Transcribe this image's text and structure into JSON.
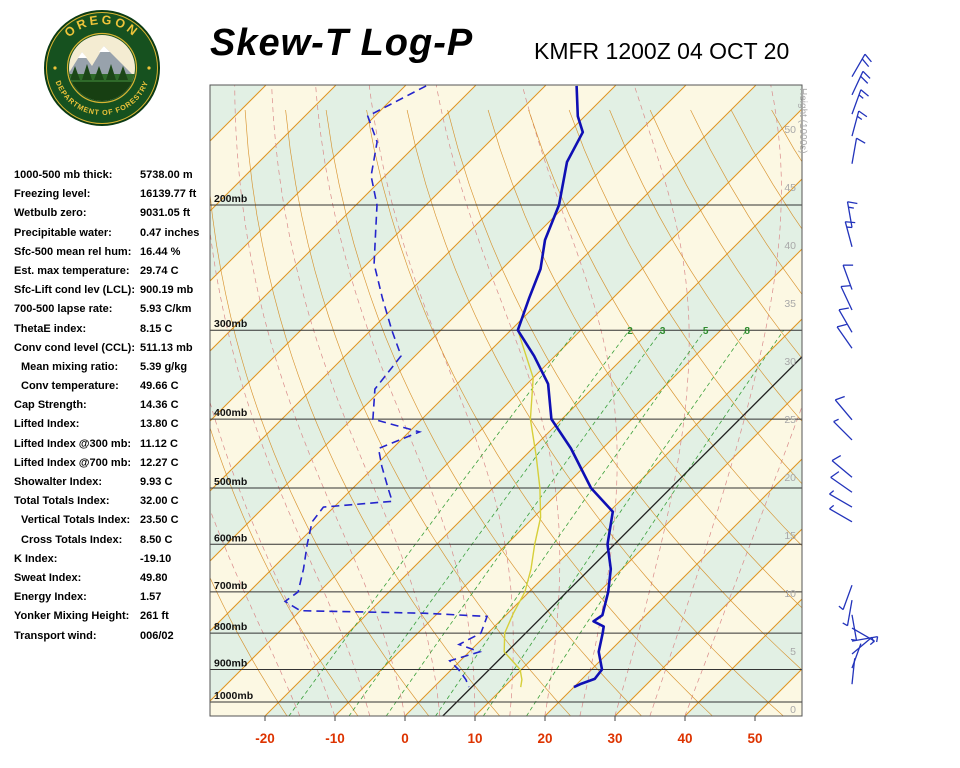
{
  "header": {
    "title": "Skew-T Log-P",
    "station": "KMFR 1200Z 04 OCT 20"
  },
  "logo": {
    "top_text": "OREGON",
    "bottom_text": "DEPARTMENT OF FORESTRY"
  },
  "indices": [
    {
      "label": "1000-500 mb thick:",
      "value": "5738.00 m",
      "indent": false
    },
    {
      "label": "Freezing level:",
      "value": "16139.77 ft",
      "indent": false
    },
    {
      "label": "Wetbulb zero:",
      "value": "9031.05 ft",
      "indent": false
    },
    {
      "label": "Precipitable water:",
      "value": "0.47 inches",
      "indent": false
    },
    {
      "label": "Sfc-500 mean rel hum:",
      "value": "16.44 %",
      "indent": false
    },
    {
      "label": "Est. max temperature:",
      "value": "29.74 C",
      "indent": false
    },
    {
      "label": "Sfc-Lift cond lev (LCL):",
      "value": "900.19 mb",
      "indent": false
    },
    {
      "label": "700-500 lapse rate:",
      "value": "5.93 C/km",
      "indent": false
    },
    {
      "label": "ThetaE index:",
      "value": "8.15 C",
      "indent": false
    },
    {
      "label": "Conv cond level (CCL):",
      "value": "511.13 mb",
      "indent": false
    },
    {
      "label": "Mean mixing ratio:",
      "value": "5.39 g/kg",
      "indent": true
    },
    {
      "label": "Conv temperature:",
      "value": "49.66 C",
      "indent": true
    },
    {
      "label": "Cap Strength:",
      "value": "14.36 C",
      "indent": false
    },
    {
      "label": "Lifted Index:",
      "value": "13.80 C",
      "indent": false
    },
    {
      "label": "Lifted Index @300 mb:",
      "value": "11.12 C",
      "indent": false
    },
    {
      "label": "Lifted Index @700 mb:",
      "value": "12.27 C",
      "indent": false
    },
    {
      "label": "Showalter Index:",
      "value": "9.93 C",
      "indent": false
    },
    {
      "label": "Total Totals Index:",
      "value": "32.00 C",
      "indent": false
    },
    {
      "label": "Vertical Totals Index:",
      "value": "23.50 C",
      "indent": true
    },
    {
      "label": "Cross Totals Index:",
      "value": "8.50 C",
      "indent": true
    },
    {
      "label": "K Index:",
      "value": "-19.10",
      "indent": false
    },
    {
      "label": "Sweat Index:",
      "value": "49.80",
      "indent": false
    },
    {
      "label": "Energy Index:",
      "value": "1.57",
      "indent": false
    },
    {
      "label": "Yonker Mixing Height:",
      "value": "261 ft",
      "indent": false
    },
    {
      "label": "Transport wind:",
      "value": "006/02",
      "indent": false
    }
  ],
  "chart_data": {
    "type": "skewt-log-p",
    "pressure_axis": {
      "levels": [
        200,
        300,
        400,
        500,
        600,
        700,
        800,
        900,
        1000
      ],
      "labels": [
        "200mb",
        "300mb",
        "400mb",
        "500mb",
        "600mb",
        "700mb",
        "800mb",
        "900mb",
        "1000mb"
      ],
      "top_mb": 136,
      "bottom_mb": 1047
    },
    "temp_axis": {
      "ticks": [
        -20,
        -10,
        0,
        10,
        20,
        30,
        40,
        50
      ],
      "unit": "C"
    },
    "height_axis": {
      "title": "Height (1000s)",
      "labels": [
        50,
        45,
        40,
        35,
        30,
        25,
        20,
        15,
        10,
        5,
        0
      ],
      "unit": "1000s ft"
    },
    "grid": {
      "isotherm_step_c": 10,
      "dry_adiabats_theta_k": {
        "start": 253,
        "end": 453,
        "step": 10
      },
      "moist_adiabats_start_c": {
        "start": -15,
        "end": 40,
        "step": 5
      },
      "mixing_ratio_lines_gkg": [
        1,
        2,
        3,
        5,
        8,
        12
      ],
      "mixing_ratio_labels": [
        "2",
        "3",
        "5",
        "8"
      ],
      "reference_line_intercept_c": 5.4,
      "skew_deg": 45
    },
    "series": {
      "temperature": {
        "name": "Temperature",
        "units": [
          "mb",
          "C"
        ],
        "points": [
          [
            136,
            -65.5
          ],
          [
            150,
            -61
          ],
          [
            158,
            -58
          ],
          [
            174,
            -56
          ],
          [
            200,
            -51
          ],
          [
            224,
            -48
          ],
          [
            246,
            -44.5
          ],
          [
            270,
            -42
          ],
          [
            300,
            -39
          ],
          [
            326,
            -33
          ],
          [
            357,
            -27
          ],
          [
            400,
            -21.5
          ],
          [
            440,
            -14.5
          ],
          [
            500,
            -6.0
          ],
          [
            540,
            0.5
          ],
          [
            600,
            4.4
          ],
          [
            650,
            8.4
          ],
          [
            700,
            11.3
          ],
          [
            755,
            13.8
          ],
          [
            770,
            13.4
          ],
          [
            783,
            15.6
          ],
          [
            800,
            16.4
          ],
          [
            850,
            18.5
          ],
          [
            900,
            21.5
          ],
          [
            928,
            21.8
          ],
          [
            942,
            20.6
          ],
          [
            953,
            20.0
          ]
        ]
      },
      "dewpoint": {
        "name": "Dewpoint",
        "units": [
          "mb",
          "C"
        ],
        "points": [
          [
            136,
            -87
          ],
          [
            150,
            -91
          ],
          [
            163,
            -86
          ],
          [
            182,
            -82
          ],
          [
            200,
            -77
          ],
          [
            220,
            -73
          ],
          [
            242,
            -69
          ],
          [
            270,
            -63
          ],
          [
            300,
            -57
          ],
          [
            326,
            -52
          ],
          [
            363,
            -51
          ],
          [
            400,
            -47
          ],
          [
            417,
            -38.5
          ],
          [
            440,
            -42
          ],
          [
            466,
            -39
          ],
          [
            500,
            -35
          ],
          [
            522,
            -32.5
          ],
          [
            532,
            -41.5
          ],
          [
            558,
            -41
          ],
          [
            600,
            -38.5
          ],
          [
            650,
            -35.5
          ],
          [
            700,
            -33
          ],
          [
            722,
            -33.5
          ],
          [
            744,
            -30
          ],
          [
            750,
            -12
          ],
          [
            758,
            -2.5
          ],
          [
            800,
            -1
          ],
          [
            830,
            -2.5
          ],
          [
            850,
            1.5
          ],
          [
            875,
            -1.5
          ],
          [
            900,
            1.0
          ],
          [
            930,
            3.5
          ],
          [
            953,
            5.0
          ]
        ]
      },
      "wetbulb": {
        "name": "Wetbulb",
        "units": [
          "mb",
          "C"
        ],
        "points": [
          [
            300,
            -39
          ],
          [
            350,
            -30
          ],
          [
            400,
            -24.5
          ],
          [
            450,
            -18.5
          ],
          [
            500,
            -13.3
          ],
          [
            550,
            -9
          ],
          [
            600,
            -6.0
          ],
          [
            650,
            -3
          ],
          [
            700,
            -0.6
          ],
          [
            750,
            0.8
          ],
          [
            800,
            2.4
          ],
          [
            850,
            5
          ],
          [
            900,
            9.8
          ],
          [
            930,
            11.5
          ],
          [
            953,
            12.4
          ]
        ]
      }
    },
    "winds": [
      {
        "p": 132,
        "dir": 30,
        "kt": 20
      },
      {
        "p": 140,
        "dir": 25,
        "kt": 20
      },
      {
        "p": 149,
        "dir": 20,
        "kt": 15
      },
      {
        "p": 160,
        "dir": 15,
        "kt": 15
      },
      {
        "p": 175,
        "dir": 10,
        "kt": 10
      },
      {
        "p": 215,
        "dir": 350,
        "kt": 15
      },
      {
        "p": 229,
        "dir": 345,
        "kt": 15
      },
      {
        "p": 263,
        "dir": 340,
        "kt": 10
      },
      {
        "p": 281,
        "dir": 335,
        "kt": 10
      },
      {
        "p": 302,
        "dir": 330,
        "kt": 10
      },
      {
        "p": 318,
        "dir": 325,
        "kt": 10
      },
      {
        "p": 401,
        "dir": 320,
        "kt": 10
      },
      {
        "p": 428,
        "dir": 315,
        "kt": 5
      },
      {
        "p": 483,
        "dir": 310,
        "kt": 10
      },
      {
        "p": 507,
        "dir": 305,
        "kt": 10
      },
      {
        "p": 532,
        "dir": 300,
        "kt": 5
      },
      {
        "p": 558,
        "dir": 300,
        "kt": 5
      },
      {
        "p": 685,
        "dir": 200,
        "kt": 5
      },
      {
        "p": 719,
        "dir": 190,
        "kt": 5
      },
      {
        "p": 754,
        "dir": 170,
        "kt": 3
      },
      {
        "p": 787,
        "dir": 120,
        "kt": 3
      },
      {
        "p": 821,
        "dir": 80,
        "kt": 3
      },
      {
        "p": 856,
        "dir": 50,
        "kt": 3
      },
      {
        "p": 896,
        "dir": 20,
        "kt": 2
      },
      {
        "p": 944,
        "dir": 6,
        "kt": 2
      }
    ],
    "colors": {
      "band_cream": "#fcf8e3",
      "band_green": "#e2f0e4",
      "isotherm": "#e0941f",
      "dry_adiabat": "#d4881c",
      "moist_adiabat": "#d98a8a",
      "mixing_ratio": "#3aa03a",
      "mixing_label": "#2e8b2e",
      "isobar": "#333333",
      "border": "#555555",
      "temp_labels": "#dd3300",
      "height_labels": "#a8a8a8",
      "temperature_trace": "#0f0fb4",
      "dewpoint_trace": "#2424cc",
      "wetbulb_trace": "#d6cf3a",
      "wind_barb": "#2233bb",
      "reference_line": "#222222"
    }
  }
}
